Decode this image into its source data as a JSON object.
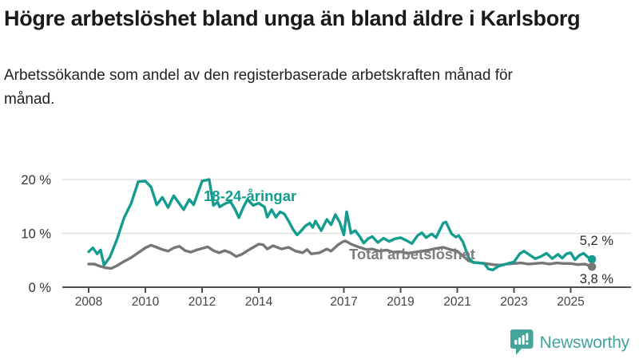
{
  "header": {
    "title": "Högre arbetslöshet bland unga än bland äldre i Karlsborg",
    "subtitle": "Arbetssökande som andel av den registerbaserade arbetskraften månad för månad."
  },
  "footer": {
    "brand": "Newsworthy",
    "logo_icon": "speech-bubble-with-bar-chart-and-exclamation"
  },
  "colors": {
    "young_line": "#149c8f",
    "total_line": "#767676",
    "grid": "#dedede",
    "axis": "#4d4d4d",
    "annotation_text": "#2b2b2b",
    "tick_label": "#444444",
    "y_label": "#333333",
    "brand": "#44a49b",
    "background": "#ffffff"
  },
  "chart_data": {
    "type": "line",
    "title": "Högre arbetslöshet bland unga än bland äldre i Karlsborg",
    "subtitle": "Arbetssökande som andel av den registerbaserade arbetskraften månad för månad.",
    "unit": "%",
    "grid": "horizontal-only",
    "legend_position": "inline-labels-on-lines",
    "xlim": [
      2008,
      2025.83
    ],
    "ylim": [
      0,
      24
    ],
    "x_tick_years": [
      2008,
      2010,
      2012,
      2014,
      2017,
      2019,
      2021,
      2023,
      2025
    ],
    "x_tick_labels": [
      "2008",
      "2010",
      "2012",
      "2014",
      "2017",
      "2019",
      "2021",
      "2023",
      "2025"
    ],
    "y_ticks": [
      0,
      10,
      20
    ],
    "y_tick_labels": [
      "0 %",
      "10 %",
      "20 %"
    ],
    "series": [
      {
        "name": "18-24-åringar",
        "color": "#149c8f",
        "end_label": "5,2 %",
        "end_value": 5.2,
        "x": [
          2008.0,
          2008.15,
          2008.3,
          2008.42,
          2008.54,
          2008.75,
          2009.0,
          2009.25,
          2009.5,
          2009.75,
          2010.0,
          2010.2,
          2010.4,
          2010.6,
          2010.8,
          2011.0,
          2011.15,
          2011.35,
          2011.55,
          2011.7,
          2011.85,
          2012.0,
          2012.25,
          2012.4,
          2012.55,
          2012.62,
          2012.8,
          2013.0,
          2013.15,
          2013.3,
          2013.45,
          2013.6,
          2013.8,
          2014.0,
          2014.2,
          2014.3,
          2014.45,
          2014.6,
          2014.75,
          2014.9,
          2015.05,
          2015.2,
          2015.35,
          2015.5,
          2015.65,
          2015.8,
          2015.9,
          2016.0,
          2016.2,
          2016.4,
          2016.55,
          2016.7,
          2016.85,
          2017.0,
          2017.1,
          2017.25,
          2017.4,
          2017.55,
          2017.7,
          2017.85,
          2018.0,
          2018.2,
          2018.4,
          2018.6,
          2018.8,
          2019.0,
          2019.2,
          2019.4,
          2019.6,
          2019.75,
          2019.9,
          2020.1,
          2020.25,
          2020.5,
          2020.6,
          2020.8,
          2020.95,
          2021.05,
          2021.2,
          2021.4,
          2021.55,
          2021.75,
          2021.95,
          2022.1,
          2022.25,
          2022.45,
          2022.65,
          2022.85,
          2023.0,
          2023.2,
          2023.35,
          2023.55,
          2023.75,
          2023.95,
          2024.15,
          2024.35,
          2024.55,
          2024.7,
          2024.85,
          2025.0,
          2025.15,
          2025.3,
          2025.45,
          2025.6,
          2025.75
        ],
        "values": [
          6.6,
          7.3,
          6.2,
          6.9,
          4.1,
          5.6,
          8.9,
          12.9,
          15.6,
          19.6,
          19.7,
          18.6,
          15.3,
          16.7,
          14.8,
          17.0,
          15.9,
          14.4,
          16.3,
          15.3,
          17.5,
          19.7,
          20.0,
          15.2,
          15.8,
          14.9,
          15.5,
          15.9,
          14.6,
          12.9,
          14.8,
          16.3,
          15.2,
          15.6,
          14.9,
          13.0,
          14.4,
          13.0,
          14.0,
          13.6,
          12.3,
          10.8,
          9.7,
          10.5,
          11.4,
          11.9,
          11.1,
          12.3,
          10.5,
          12.6,
          11.6,
          13.5,
          12.1,
          9.7,
          14.0,
          10.0,
          10.5,
          9.5,
          8.2,
          9.0,
          9.4,
          8.3,
          9.1,
          8.5,
          9.0,
          9.2,
          8.7,
          8.1,
          9.6,
          10.1,
          9.2,
          9.9,
          9.2,
          11.9,
          12.1,
          9.9,
          9.3,
          9.6,
          8.4,
          5.5,
          4.6,
          4.5,
          4.4,
          3.4,
          3.2,
          3.9,
          4.2,
          4.5,
          4.7,
          6.2,
          6.7,
          6.0,
          5.3,
          5.7,
          6.3,
          5.3,
          6.1,
          5.4,
          6.2,
          6.4,
          5.1,
          5.9,
          6.3,
          5.6,
          5.2
        ]
      },
      {
        "name": "Total arbetslöshet",
        "color": "#767676",
        "end_label": "3,8 %",
        "end_value": 3.8,
        "x": [
          2008.0,
          2008.2,
          2008.4,
          2008.6,
          2008.8,
          2009.0,
          2009.25,
          2009.5,
          2009.75,
          2010.0,
          2010.2,
          2010.4,
          2010.6,
          2010.8,
          2011.0,
          2011.2,
          2011.4,
          2011.6,
          2011.8,
          2012.0,
          2012.2,
          2012.4,
          2012.6,
          2012.8,
          2013.0,
          2013.2,
          2013.4,
          2013.7,
          2014.0,
          2014.15,
          2014.3,
          2014.5,
          2014.8,
          2015.05,
          2015.3,
          2015.55,
          2015.7,
          2015.85,
          2016.15,
          2016.4,
          2016.55,
          2016.8,
          2016.95,
          2017.05,
          2017.3,
          2017.55,
          2017.8,
          2018.0,
          2018.25,
          2018.5,
          2018.75,
          2019.0,
          2019.25,
          2019.5,
          2019.75,
          2020.0,
          2020.25,
          2020.5,
          2020.75,
          2021.0,
          2021.2,
          2021.4,
          2021.6,
          2021.8,
          2022.0,
          2022.25,
          2022.5,
          2022.75,
          2023.0,
          2023.25,
          2023.5,
          2023.75,
          2024.0,
          2024.25,
          2024.5,
          2024.75,
          2025.0,
          2025.25,
          2025.5,
          2025.75
        ],
        "values": [
          4.3,
          4.3,
          3.9,
          3.6,
          3.5,
          4.0,
          4.8,
          5.5,
          6.4,
          7.3,
          7.8,
          7.4,
          7.0,
          6.7,
          7.3,
          7.6,
          6.8,
          6.5,
          6.9,
          7.2,
          7.5,
          6.8,
          6.4,
          6.8,
          6.4,
          5.7,
          6.1,
          7.1,
          8.0,
          7.9,
          7.1,
          7.7,
          7.1,
          7.4,
          6.7,
          6.4,
          7.0,
          6.2,
          6.4,
          7.1,
          6.7,
          7.9,
          8.4,
          8.6,
          7.9,
          7.4,
          7.0,
          7.1,
          6.7,
          6.9,
          6.5,
          6.6,
          6.3,
          6.5,
          6.7,
          6.9,
          7.2,
          7.4,
          7.0,
          6.7,
          5.8,
          4.9,
          4.6,
          4.5,
          4.4,
          4.2,
          4.1,
          4.3,
          4.4,
          4.5,
          4.3,
          4.4,
          4.5,
          4.3,
          4.5,
          4.4,
          4.4,
          4.2,
          4.3,
          3.8
        ]
      }
    ]
  }
}
